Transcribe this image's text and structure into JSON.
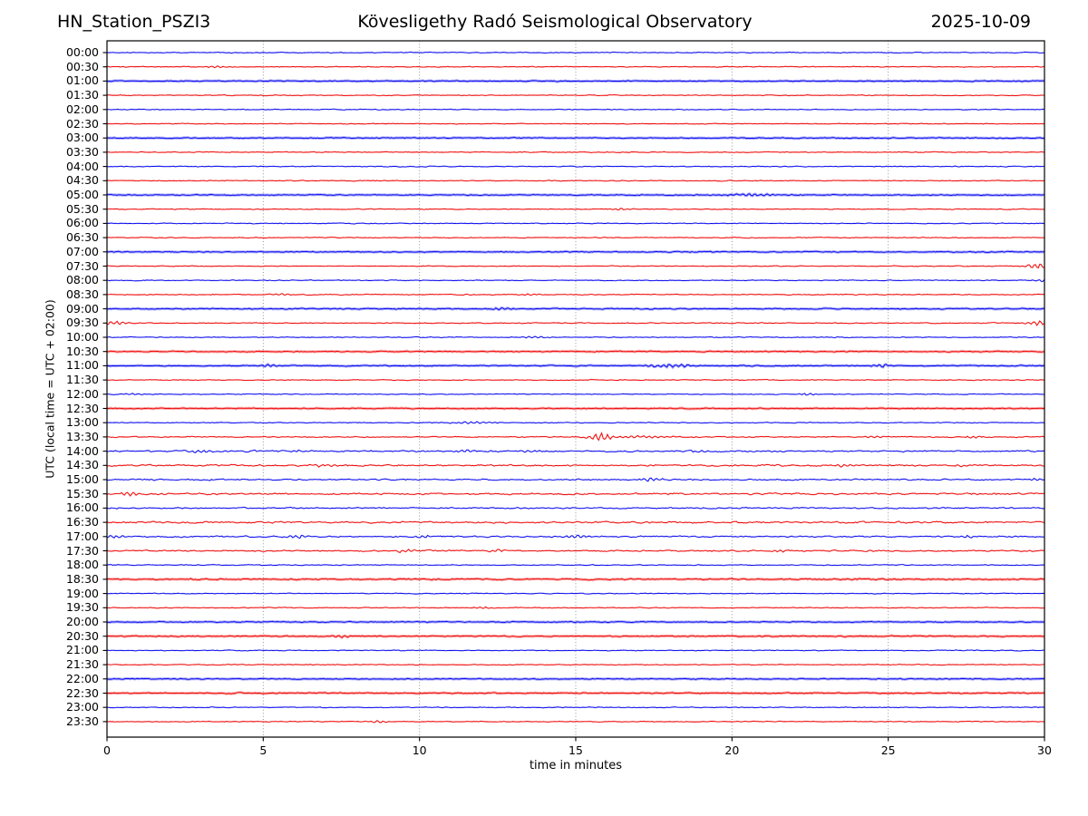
{
  "header": {
    "station": "HN_Station_PSZI3",
    "observatory": "Kövesligethy Radó Seismological Observatory",
    "date": "2025-10-09"
  },
  "chart_data": {
    "type": "line",
    "subtype": "helicorder-seismogram",
    "title": "Kövesligethy Radó Seismological Observatory",
    "station": "HN_Station_PSZI3",
    "date": "2025-10-09",
    "xlabel": "time in minutes",
    "ylabel": "UTC (local time = UTC + 02:00)",
    "x_range": [
      0,
      30
    ],
    "x_ticks": [
      0,
      5,
      10,
      15,
      20,
      25,
      30
    ],
    "grid_minutes": [
      5,
      10,
      15,
      20,
      25
    ],
    "grid_on": true,
    "minutes_per_row": 30,
    "colors": {
      "blue": "#0000ee",
      "red": "#ee0000",
      "grid": "#8a8a8a",
      "frame": "#000000"
    },
    "rows": [
      {
        "label": "00:00",
        "color": "blue",
        "noise": 0.5,
        "fuzz": false,
        "events": []
      },
      {
        "label": "00:30",
        "color": "red",
        "noise": 0.5,
        "fuzz": false,
        "events": [
          {
            "m": 3.5,
            "a": 1.0,
            "w": 0.5
          }
        ]
      },
      {
        "label": "01:00",
        "color": "blue",
        "noise": 0.55,
        "fuzz": true,
        "events": []
      },
      {
        "label": "01:30",
        "color": "red",
        "noise": 0.5,
        "fuzz": false,
        "events": []
      },
      {
        "label": "02:00",
        "color": "blue",
        "noise": 0.5,
        "fuzz": false,
        "events": []
      },
      {
        "label": "02:30",
        "color": "red",
        "noise": 0.5,
        "fuzz": false,
        "events": []
      },
      {
        "label": "03:00",
        "color": "blue",
        "noise": 0.55,
        "fuzz": true,
        "events": []
      },
      {
        "label": "03:30",
        "color": "red",
        "noise": 0.5,
        "fuzz": false,
        "events": []
      },
      {
        "label": "04:00",
        "color": "blue",
        "noise": 0.5,
        "fuzz": false,
        "events": []
      },
      {
        "label": "04:30",
        "color": "red",
        "noise": 0.5,
        "fuzz": false,
        "events": []
      },
      {
        "label": "05:00",
        "color": "blue",
        "noise": 0.55,
        "fuzz": true,
        "events": [
          {
            "m": 20.6,
            "a": 1.2,
            "w": 1.2
          }
        ]
      },
      {
        "label": "05:30",
        "color": "red",
        "noise": 0.5,
        "fuzz": false,
        "events": [
          {
            "m": 16.5,
            "a": 1.1,
            "w": 0.4
          }
        ]
      },
      {
        "label": "06:00",
        "color": "blue",
        "noise": 0.5,
        "fuzz": false,
        "events": []
      },
      {
        "label": "06:30",
        "color": "red",
        "noise": 0.5,
        "fuzz": false,
        "events": []
      },
      {
        "label": "07:00",
        "color": "blue",
        "noise": 0.55,
        "fuzz": true,
        "events": []
      },
      {
        "label": "07:30",
        "color": "red",
        "noise": 0.5,
        "fuzz": false,
        "events": [
          {
            "m": 29.8,
            "a": 3.2,
            "w": 0.5
          }
        ]
      },
      {
        "label": "08:00",
        "color": "blue",
        "noise": 0.5,
        "fuzz": false,
        "events": [
          {
            "m": 29.9,
            "a": 1.6,
            "w": 0.3
          }
        ]
      },
      {
        "label": "08:30",
        "color": "red",
        "noise": 0.55,
        "fuzz": false,
        "events": [
          {
            "m": 5.6,
            "a": 1.6,
            "w": 0.35
          },
          {
            "m": 13.6,
            "a": 1.1,
            "w": 0.4
          }
        ]
      },
      {
        "label": "09:00",
        "color": "blue",
        "noise": 0.6,
        "fuzz": true,
        "events": [
          {
            "m": 12.6,
            "a": 1.3,
            "w": 0.5
          }
        ]
      },
      {
        "label": "09:30",
        "color": "red",
        "noise": 0.55,
        "fuzz": false,
        "events": [
          {
            "m": 0.2,
            "a": 2.2,
            "w": 0.5
          },
          {
            "m": 29.8,
            "a": 2.5,
            "w": 0.5
          }
        ]
      },
      {
        "label": "10:00",
        "color": "blue",
        "noise": 0.5,
        "fuzz": false,
        "events": [
          {
            "m": 13.7,
            "a": 1.2,
            "w": 0.6
          }
        ]
      },
      {
        "label": "10:30",
        "color": "red",
        "noise": 0.55,
        "fuzz": true,
        "events": []
      },
      {
        "label": "11:00",
        "color": "blue",
        "noise": 0.55,
        "fuzz": true,
        "events": [
          {
            "m": 5.2,
            "a": 1.6,
            "w": 0.35
          },
          {
            "m": 18.0,
            "a": 1.8,
            "w": 1.0
          },
          {
            "m": 24.8,
            "a": 1.8,
            "w": 0.4
          }
        ]
      },
      {
        "label": "11:30",
        "color": "red",
        "noise": 0.5,
        "fuzz": false,
        "events": []
      },
      {
        "label": "12:00",
        "color": "blue",
        "noise": 0.5,
        "fuzz": false,
        "events": [
          {
            "m": 0.9,
            "a": 1.6,
            "w": 0.35
          },
          {
            "m": 22.4,
            "a": 1.4,
            "w": 0.4
          }
        ]
      },
      {
        "label": "12:30",
        "color": "red",
        "noise": 0.55,
        "fuzz": true,
        "events": []
      },
      {
        "label": "13:00",
        "color": "blue",
        "noise": 0.5,
        "fuzz": false,
        "events": [
          {
            "m": 11.5,
            "a": 1.0,
            "w": 1.2
          }
        ]
      },
      {
        "label": "13:30",
        "color": "red",
        "noise": 0.65,
        "fuzz": false,
        "events": [
          {
            "m": 15.8,
            "a": 4.2,
            "w": 0.45
          },
          {
            "m": 17.0,
            "a": 1.2,
            "w": 1.6
          },
          {
            "m": 24.5,
            "a": 1.3,
            "w": 0.45
          },
          {
            "m": 27.8,
            "a": 1.2,
            "w": 0.4
          }
        ]
      },
      {
        "label": "14:00",
        "color": "blue",
        "noise": 0.95,
        "fuzz": false,
        "events": [
          {
            "m": 3.0,
            "a": 1.6,
            "w": 0.5
          },
          {
            "m": 6.2,
            "a": 1.3,
            "w": 0.4
          },
          {
            "m": 11.4,
            "a": 1.8,
            "w": 0.4
          },
          {
            "m": 13.5,
            "a": 1.6,
            "w": 0.4
          },
          {
            "m": 19.0,
            "a": 1.3,
            "w": 0.4
          }
        ]
      },
      {
        "label": "14:30",
        "color": "red",
        "noise": 0.95,
        "fuzz": false,
        "events": [
          {
            "m": 7.0,
            "a": 1.5,
            "w": 0.7
          },
          {
            "m": 23.6,
            "a": 1.6,
            "w": 0.45
          },
          {
            "m": 27.3,
            "a": 1.4,
            "w": 0.4
          }
        ]
      },
      {
        "label": "15:00",
        "color": "blue",
        "noise": 0.85,
        "fuzz": false,
        "events": [
          {
            "m": 17.4,
            "a": 2.2,
            "w": 0.5
          },
          {
            "m": 29.8,
            "a": 1.6,
            "w": 0.35
          }
        ]
      },
      {
        "label": "15:30",
        "color": "red",
        "noise": 1.05,
        "fuzz": false,
        "events": [
          {
            "m": 0.7,
            "a": 2.0,
            "w": 0.5
          }
        ]
      },
      {
        "label": "16:00",
        "color": "blue",
        "noise": 0.8,
        "fuzz": false,
        "events": []
      },
      {
        "label": "16:30",
        "color": "red",
        "noise": 1.05,
        "fuzz": false,
        "events": []
      },
      {
        "label": "17:00",
        "color": "blue",
        "noise": 0.9,
        "fuzz": false,
        "events": [
          {
            "m": 0.25,
            "a": 2.0,
            "w": 0.35
          },
          {
            "m": 6.1,
            "a": 2.5,
            "w": 0.4
          },
          {
            "m": 10.1,
            "a": 1.6,
            "w": 0.35
          },
          {
            "m": 15.0,
            "a": 2.0,
            "w": 0.45
          },
          {
            "m": 27.5,
            "a": 1.4,
            "w": 0.4
          }
        ]
      },
      {
        "label": "17:30",
        "color": "red",
        "noise": 0.9,
        "fuzz": false,
        "events": [
          {
            "m": 9.5,
            "a": 1.4,
            "w": 0.4
          },
          {
            "m": 12.5,
            "a": 1.3,
            "w": 0.4
          },
          {
            "m": 21.5,
            "a": 1.4,
            "w": 0.4
          }
        ]
      },
      {
        "label": "18:00",
        "color": "blue",
        "noise": 0.5,
        "fuzz": false,
        "events": []
      },
      {
        "label": "18:30",
        "color": "red",
        "noise": 0.75,
        "fuzz": true,
        "events": []
      },
      {
        "label": "19:00",
        "color": "blue",
        "noise": 0.5,
        "fuzz": false,
        "events": []
      },
      {
        "label": "19:30",
        "color": "red",
        "noise": 0.5,
        "fuzz": false,
        "events": [
          {
            "m": 12.0,
            "a": 1.2,
            "w": 0.4
          }
        ]
      },
      {
        "label": "20:00",
        "color": "blue",
        "noise": 0.55,
        "fuzz": true,
        "events": []
      },
      {
        "label": "20:30",
        "color": "red",
        "noise": 0.65,
        "fuzz": true,
        "events": [
          {
            "m": 7.5,
            "a": 1.2,
            "w": 0.5
          }
        ]
      },
      {
        "label": "21:00",
        "color": "blue",
        "noise": 0.5,
        "fuzz": false,
        "events": []
      },
      {
        "label": "21:30",
        "color": "red",
        "noise": 0.5,
        "fuzz": false,
        "events": []
      },
      {
        "label": "22:00",
        "color": "blue",
        "noise": 0.55,
        "fuzz": true,
        "events": []
      },
      {
        "label": "22:30",
        "color": "red",
        "noise": 0.65,
        "fuzz": true,
        "events": []
      },
      {
        "label": "23:00",
        "color": "blue",
        "noise": 0.5,
        "fuzz": false,
        "events": []
      },
      {
        "label": "23:30",
        "color": "red",
        "noise": 0.5,
        "fuzz": false,
        "events": [
          {
            "m": 8.7,
            "a": 1.4,
            "w": 0.45
          }
        ]
      }
    ]
  }
}
